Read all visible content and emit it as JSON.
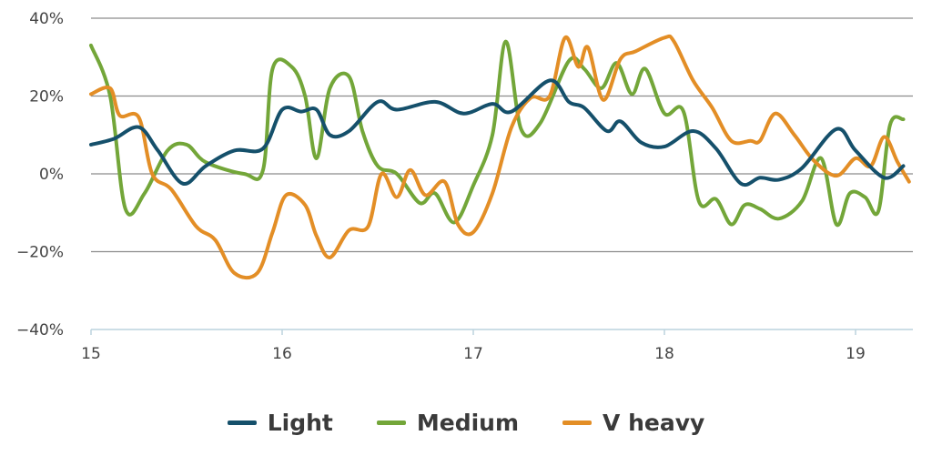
{
  "chart_data": {
    "type": "line",
    "xlim": [
      15,
      19.3
    ],
    "ylim": [
      -40,
      40
    ],
    "x_ticks": [
      15,
      16,
      17,
      18,
      19
    ],
    "x_tick_labels": [
      "15",
      "16",
      "17",
      "18",
      "19"
    ],
    "y_ticks": [
      40,
      20,
      0,
      -20,
      -40
    ],
    "y_tick_labels": [
      "40%",
      "20%",
      "0%",
      "−20%",
      "−40%"
    ],
    "grid": "horizontal",
    "legend_position": "bottom-center",
    "series": [
      {
        "name": "Light",
        "color": "#15506b",
        "points": [
          [
            15.0,
            7.5
          ],
          [
            15.12,
            9
          ],
          [
            15.25,
            12
          ],
          [
            15.35,
            6
          ],
          [
            15.48,
            -2.5
          ],
          [
            15.6,
            2
          ],
          [
            15.75,
            6
          ],
          [
            15.9,
            6.5
          ],
          [
            16.0,
            16.5
          ],
          [
            16.1,
            16
          ],
          [
            16.18,
            16.5
          ],
          [
            16.25,
            10
          ],
          [
            16.35,
            11
          ],
          [
            16.5,
            18.5
          ],
          [
            16.6,
            16.5
          ],
          [
            16.8,
            18.5
          ],
          [
            16.95,
            15.5
          ],
          [
            17.1,
            18
          ],
          [
            17.2,
            16
          ],
          [
            17.4,
            24
          ],
          [
            17.5,
            18.5
          ],
          [
            17.58,
            17
          ],
          [
            17.7,
            11
          ],
          [
            17.77,
            13.5
          ],
          [
            17.88,
            8
          ],
          [
            18.0,
            7
          ],
          [
            18.15,
            11
          ],
          [
            18.27,
            6.5
          ],
          [
            18.4,
            -2.5
          ],
          [
            18.5,
            -1
          ],
          [
            18.6,
            -1.5
          ],
          [
            18.72,
            1.5
          ],
          [
            18.9,
            11.5
          ],
          [
            19.0,
            6
          ],
          [
            19.15,
            -1
          ],
          [
            19.25,
            2
          ]
        ]
      },
      {
        "name": "Medium",
        "color": "#73a639",
        "points": [
          [
            15.0,
            33
          ],
          [
            15.1,
            20
          ],
          [
            15.18,
            -9
          ],
          [
            15.28,
            -5
          ],
          [
            15.4,
            6
          ],
          [
            15.5,
            7.5
          ],
          [
            15.6,
            3
          ],
          [
            15.8,
            0
          ],
          [
            15.9,
            1
          ],
          [
            15.95,
            27
          ],
          [
            16.05,
            27.5
          ],
          [
            16.12,
            20
          ],
          [
            16.18,
            4
          ],
          [
            16.25,
            22
          ],
          [
            16.35,
            25
          ],
          [
            16.42,
            11
          ],
          [
            16.5,
            2
          ],
          [
            16.6,
            0
          ],
          [
            16.72,
            -7.5
          ],
          [
            16.8,
            -5
          ],
          [
            16.9,
            -12.5
          ],
          [
            17.0,
            -3
          ],
          [
            17.1,
            10
          ],
          [
            17.17,
            34
          ],
          [
            17.25,
            11.5
          ],
          [
            17.35,
            13
          ],
          [
            17.5,
            29
          ],
          [
            17.58,
            27
          ],
          [
            17.67,
            22
          ],
          [
            17.75,
            28.5
          ],
          [
            17.83,
            20.5
          ],
          [
            17.9,
            27
          ],
          [
            18.0,
            15.5
          ],
          [
            18.1,
            16
          ],
          [
            18.18,
            -7
          ],
          [
            18.27,
            -6.5
          ],
          [
            18.35,
            -13
          ],
          [
            18.42,
            -8
          ],
          [
            18.5,
            -9
          ],
          [
            18.6,
            -11.5
          ],
          [
            18.72,
            -7
          ],
          [
            18.82,
            4
          ],
          [
            18.9,
            -13
          ],
          [
            18.97,
            -5
          ],
          [
            19.05,
            -6
          ],
          [
            19.12,
            -9.5
          ],
          [
            19.18,
            12.5
          ],
          [
            19.25,
            14
          ]
        ]
      },
      {
        "name": "V heavy",
        "color": "#e38e26",
        "points": [
          [
            15.0,
            20.5
          ],
          [
            15.1,
            22
          ],
          [
            15.15,
            15
          ],
          [
            15.25,
            14.5
          ],
          [
            15.32,
            0
          ],
          [
            15.42,
            -4
          ],
          [
            15.55,
            -13.5
          ],
          [
            15.65,
            -17
          ],
          [
            15.75,
            -25.5
          ],
          [
            15.87,
            -25.5
          ],
          [
            15.95,
            -15
          ],
          [
            16.02,
            -5.5
          ],
          [
            16.12,
            -8
          ],
          [
            16.18,
            -16
          ],
          [
            16.25,
            -21.5
          ],
          [
            16.35,
            -14.5
          ],
          [
            16.45,
            -13.5
          ],
          [
            16.52,
            0
          ],
          [
            16.6,
            -6
          ],
          [
            16.67,
            1
          ],
          [
            16.75,
            -5.5
          ],
          [
            16.85,
            -2
          ],
          [
            16.92,
            -13
          ],
          [
            17.0,
            -15
          ],
          [
            17.1,
            -5
          ],
          [
            17.2,
            12
          ],
          [
            17.3,
            19.5
          ],
          [
            17.4,
            20
          ],
          [
            17.48,
            35
          ],
          [
            17.55,
            27.5
          ],
          [
            17.6,
            32.5
          ],
          [
            17.68,
            19
          ],
          [
            17.77,
            29.5
          ],
          [
            17.85,
            31.5
          ],
          [
            18.0,
            35
          ],
          [
            18.05,
            34
          ],
          [
            18.15,
            24
          ],
          [
            18.25,
            17
          ],
          [
            18.35,
            8.5
          ],
          [
            18.45,
            8.5
          ],
          [
            18.5,
            8.5
          ],
          [
            18.58,
            15.5
          ],
          [
            18.68,
            10
          ],
          [
            18.78,
            3.5
          ],
          [
            18.9,
            -0.5
          ],
          [
            19.0,
            4
          ],
          [
            19.08,
            2
          ],
          [
            19.15,
            9.5
          ],
          [
            19.22,
            3
          ],
          [
            19.28,
            -2
          ]
        ]
      }
    ]
  }
}
